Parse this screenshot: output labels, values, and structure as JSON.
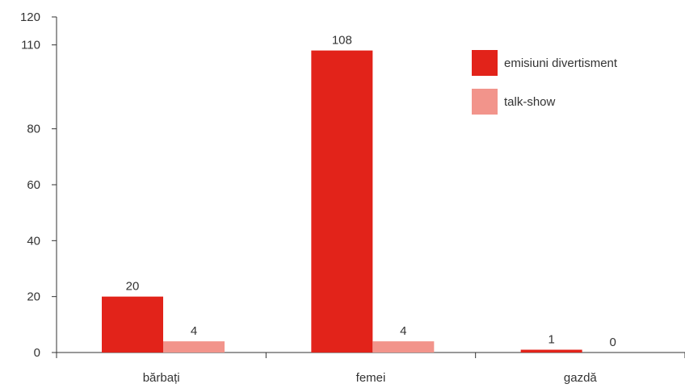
{
  "chart_data": {
    "type": "bar",
    "categories": [
      "bărbați",
      "femei",
      "gazdă"
    ],
    "series": [
      {
        "name": "emisiuni divertisment",
        "values": [
          20,
          108,
          1
        ],
        "color": "#e2231a"
      },
      {
        "name": "talk-show",
        "values": [
          4,
          4,
          0
        ],
        "color": "#f2948b"
      }
    ],
    "y_ticks": [
      0,
      20,
      40,
      60,
      80,
      110,
      120
    ],
    "y_tick_labels": [
      "0",
      "20",
      "40",
      "60",
      "80",
      "110",
      "120"
    ],
    "ylim": [
      0,
      120
    ],
    "grid": false,
    "legend_position": "top-right",
    "title": "",
    "xlabel": "",
    "ylabel": ""
  }
}
